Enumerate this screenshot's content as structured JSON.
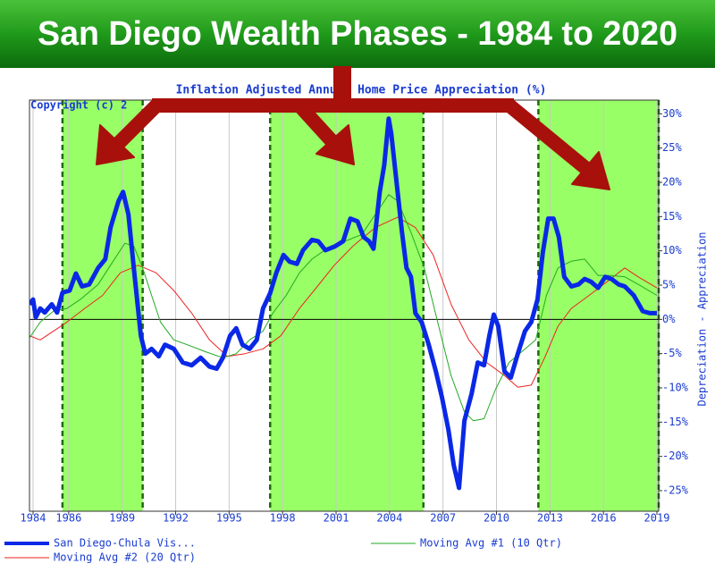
{
  "chart_data": {
    "type": "line",
    "title": "San Diego Wealth Phases - 1984 to 2020",
    "subtitle": "Inflation Adjusted Annual Home Price Appreciation (%)",
    "annotation": "Copyright (c) 2",
    "y_axis_label": "Depreciation - Appreciation",
    "xlim": [
      1983.8,
      2019.1
    ],
    "xticks": [
      1984,
      1986,
      1989,
      1992,
      1995,
      1998,
      2001,
      2004,
      2007,
      2010,
      2013,
      2016,
      2019
    ],
    "ylim": [
      -28,
      32
    ],
    "yticks": [
      {
        "value": 30,
        "label": "30%"
      },
      {
        "value": 25,
        "label": "25%"
      },
      {
        "value": 20,
        "label": "20%"
      },
      {
        "value": 15,
        "label": "15%"
      },
      {
        "value": 10,
        "label": "10%"
      },
      {
        "value": 5,
        "label": "5%"
      },
      {
        "value": 0,
        "label": "0%"
      },
      {
        "value": -5,
        "label": "-5%"
      },
      {
        "value": -10,
        "label": "-10%"
      },
      {
        "value": -15,
        "label": "-15%"
      },
      {
        "value": -20,
        "label": "-20%"
      },
      {
        "value": -25,
        "label": "-25%"
      }
    ],
    "grid": "x",
    "phases": [
      [
        1985.65,
        1990.15
      ],
      [
        1997.3,
        2005.9
      ],
      [
        2012.35,
        2019.1
      ]
    ],
    "phase_color": "#99ff66",
    "series": [
      {
        "name": "San Diego-Chula Vis...",
        "color": "#0a28e6",
        "width": 5,
        "x": [
          1983.8,
          1984.0,
          1984.15,
          1984.4,
          1984.65,
          1985.05,
          1985.35,
          1985.65,
          1986.05,
          1986.4,
          1986.75,
          1987.15,
          1987.65,
          1988.05,
          1988.35,
          1988.8,
          1989.05,
          1989.35,
          1989.65,
          1990.05,
          1990.3,
          1990.65,
          1991.05,
          1991.4,
          1991.9,
          1992.4,
          1992.9,
          1993.4,
          1993.9,
          1994.3,
          1994.65,
          1995.05,
          1995.4,
          1995.75,
          1996.15,
          1996.55,
          1996.9,
          1997.3,
          1997.65,
          1998.05,
          1998.4,
          1998.8,
          1999.15,
          1999.65,
          2000.0,
          2000.4,
          2000.9,
          2001.4,
          2001.8,
          2002.2,
          2002.55,
          2002.85,
          2003.1,
          2003.45,
          2003.7,
          2003.95,
          2004.1,
          2004.4,
          2004.7,
          2004.95,
          2005.2,
          2005.45,
          2005.8,
          2006.2,
          2006.6,
          2006.95,
          2007.3,
          2007.6,
          2007.9,
          2008.2,
          2008.6,
          2008.95,
          2009.3,
          2009.6,
          2009.85,
          2010.1,
          2010.45,
          2010.8,
          2011.2,
          2011.6,
          2011.95,
          2012.3,
          2012.6,
          2012.9,
          2013.2,
          2013.5,
          2013.8,
          2014.2,
          2014.6,
          2014.95,
          2015.3,
          2015.7,
          2016.1,
          2016.45,
          2016.85,
          2017.2,
          2017.7,
          2018.2,
          2018.6,
          2019.0
        ],
        "values": [
          2.2,
          2.9,
          0.3,
          1.6,
          1.0,
          2.2,
          1.0,
          3.9,
          4.2,
          6.7,
          4.8,
          5.1,
          7.5,
          8.8,
          13.4,
          17.3,
          18.6,
          15.3,
          7.5,
          -2.4,
          -5.0,
          -4.3,
          -5.4,
          -3.7,
          -4.3,
          -6.3,
          -6.7,
          -5.6,
          -6.9,
          -7.2,
          -5.6,
          -2.4,
          -1.3,
          -3.7,
          -4.3,
          -3.0,
          1.6,
          3.8,
          6.8,
          9.4,
          8.4,
          8.1,
          10.1,
          11.6,
          11.4,
          10.1,
          10.6,
          11.4,
          14.7,
          14.3,
          12.0,
          11.4,
          10.3,
          18.6,
          22.5,
          29.3,
          27.1,
          19.9,
          12.7,
          7.5,
          6.2,
          0.9,
          -0.4,
          -3.7,
          -7.6,
          -11.5,
          -16.1,
          -21.3,
          -24.6,
          -14.8,
          -10.9,
          -6.3,
          -6.7,
          -2.4,
          0.7,
          -1.0,
          -7.6,
          -8.5,
          -5.0,
          -1.7,
          -0.4,
          2.9,
          9.8,
          14.7,
          14.7,
          12.0,
          6.2,
          4.8,
          5.1,
          5.9,
          5.5,
          4.6,
          6.2,
          5.9,
          5.1,
          4.8,
          3.5,
          1.2,
          0.9,
          0.9
        ]
      },
      {
        "name": "Moving Avg #1 (10 Qtr)",
        "color": "#22aa22",
        "width": 1,
        "x": [
          1983.8,
          1984.4,
          1985.15,
          1985.9,
          1986.65,
          1987.65,
          1988.4,
          1989.15,
          1989.65,
          1990.15,
          1990.65,
          1991.15,
          1991.9,
          1992.65,
          1993.65,
          1994.65,
          1995.4,
          1996.15,
          1996.9,
          1997.45,
          1998.2,
          1998.95,
          1999.65,
          2000.7,
          2001.7,
          2002.45,
          2003.2,
          2003.95,
          2004.45,
          2005.2,
          2005.95,
          2006.7,
          2007.45,
          2008.2,
          2008.7,
          2009.3,
          2009.95,
          2010.7,
          2011.7,
          2012.2,
          2012.8,
          2013.45,
          2014.2,
          2014.95,
          2015.7,
          2016.45,
          2017.2,
          2017.95,
          2019.0
        ],
        "values": [
          -2.7,
          -0.4,
          1.2,
          1.6,
          2.9,
          5.1,
          8.1,
          11.1,
          10.7,
          7.5,
          3.5,
          -0.4,
          -3.0,
          -3.7,
          -4.7,
          -5.6,
          -5.0,
          -3.0,
          -1.7,
          0.9,
          3.5,
          6.8,
          8.8,
          10.7,
          11.6,
          12.4,
          15.3,
          18.2,
          17.3,
          12.7,
          7.5,
          -0.4,
          -8.2,
          -13.5,
          -14.8,
          -14.5,
          -10.2,
          -6.3,
          -4.1,
          -3.0,
          3.5,
          7.5,
          8.5,
          8.8,
          6.4,
          6.4,
          6.2,
          5.1,
          3.5
        ]
      },
      {
        "name": "Moving Avg #2 (20 Qtr)",
        "color": "#ee2222",
        "width": 1,
        "x": [
          1983.8,
          1984.4,
          1985.15,
          1985.9,
          1986.9,
          1987.9,
          1988.9,
          1989.9,
          1990.9,
          1991.9,
          1992.9,
          1993.9,
          1994.9,
          1995.9,
          1996.9,
          1997.9,
          1998.95,
          1999.95,
          2000.9,
          2001.95,
          2003.2,
          2004.45,
          2005.45,
          2006.45,
          2007.45,
          2008.45,
          2009.45,
          2010.45,
          2011.2,
          2011.95,
          2012.7,
          2013.45,
          2014.2,
          2015.2,
          2016.2,
          2017.2,
          2017.95,
          2019.0
        ],
        "values": [
          -2.4,
          -3.0,
          -1.7,
          -0.4,
          1.6,
          3.5,
          6.8,
          7.9,
          6.8,
          4.2,
          0.9,
          -3.0,
          -5.4,
          -5.0,
          -4.3,
          -2.4,
          1.6,
          4.8,
          7.9,
          10.7,
          13.4,
          14.9,
          13.4,
          9.4,
          2.2,
          -3.0,
          -6.3,
          -8.2,
          -9.9,
          -9.6,
          -5.6,
          -1.0,
          1.6,
          3.5,
          5.5,
          7.5,
          6.2,
          4.6
        ]
      }
    ]
  }
}
